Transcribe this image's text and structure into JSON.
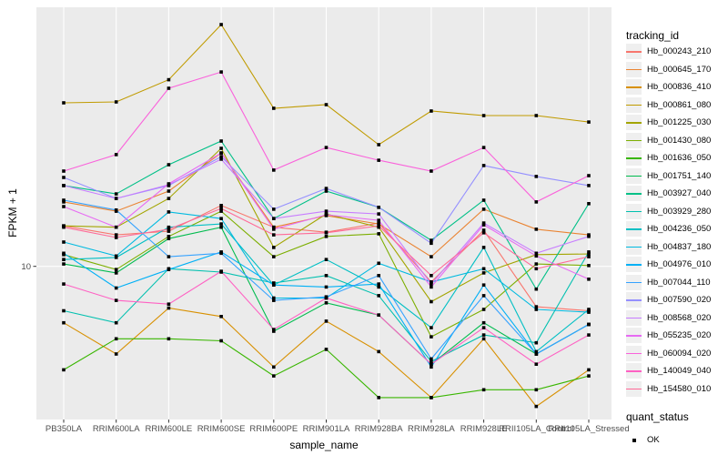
{
  "chart_data": {
    "type": "line",
    "title": "",
    "xlabel": "sample_name",
    "ylabel": "FPKM + 1",
    "y_scale": "log10",
    "ylim": [
      1.4,
      260
    ],
    "y_tick_labels": [
      "10"
    ],
    "y_tick_values": [
      10
    ],
    "grid": "vertical-per-category-plus-y10",
    "panel_color": "#ebebeb",
    "grid_color": "#ffffff",
    "axis_text_color": "#4d4d4d",
    "tick_color": "#333333",
    "point_shape": "filled-square",
    "point_color": "#000000",
    "legend_position": "right",
    "color_legend_title": "tracking_id",
    "shape_legend_title": "quant_status",
    "shape_legend_items": [
      {
        "label": "OK",
        "shape": "filled-square",
        "color": "#000000"
      }
    ],
    "categories": [
      "PB350LA",
      "RRIM600LA",
      "RRIM600LE",
      "RRIM600SE",
      "RRIM600PE",
      "RRIM901LA",
      "RRIM928BA",
      "RRIM928LA",
      "RRIM928LE",
      "RRII105LA_Control",
      "RRII105LA_Stressed"
    ],
    "series": [
      {
        "name": "Hb_000243_210",
        "color": "#F8766D",
        "values": [
          16.7,
          14.9,
          15.6,
          21.6,
          16.4,
          15.4,
          17.3,
          8.2,
          15.8,
          6.0,
          5.7
        ]
      },
      {
        "name": "Hb_000645_170",
        "color": "#EA8331",
        "values": [
          22.6,
          20.1,
          25.9,
          42.0,
          16.4,
          19.0,
          17.1,
          11.3,
          20.6,
          16.0,
          14.9
        ]
      },
      {
        "name": "Hb_000836_410",
        "color": "#D89000",
        "values": [
          4.9,
          3.3,
          5.9,
          5.3,
          2.8,
          5.0,
          3.4,
          1.9,
          4.0,
          1.7,
          2.7
        ]
      },
      {
        "name": "Hb_000861_080",
        "color": "#C09B00",
        "values": [
          79.2,
          80.1,
          106.0,
          213.0,
          73.9,
          77.4,
          46.6,
          71.4,
          67.4,
          67.4,
          62.1
        ]
      },
      {
        "name": "Hb_001225_030",
        "color": "#A3A500",
        "values": [
          16.7,
          16.4,
          23.6,
          44.5,
          12.7,
          19.4,
          16.4,
          6.4,
          9.2,
          11.6,
          11.7
        ]
      },
      {
        "name": "Hb_001430_080",
        "color": "#7CAE00",
        "values": [
          11.6,
          9.6,
          14.6,
          20.1,
          11.3,
          14.6,
          15.1,
          4.1,
          5.8,
          10.3,
          10.1
        ]
      },
      {
        "name": "Hb_001636_050",
        "color": "#39B600",
        "values": [
          2.7,
          4.0,
          4.0,
          3.9,
          2.5,
          3.5,
          1.9,
          1.9,
          2.1,
          2.1,
          2.5
        ]
      },
      {
        "name": "Hb_001751_140",
        "color": "#00BB4E",
        "values": [
          10.3,
          9.2,
          14.2,
          16.4,
          4.4,
          6.3,
          5.4,
          2.9,
          4.9,
          3.3,
          4.8
        ]
      },
      {
        "name": "Hb_003927_040",
        "color": "#00C087",
        "values": [
          27.8,
          25.0,
          36.2,
          48.8,
          18.3,
          25.9,
          21.1,
          13.9,
          23.1,
          7.5,
          22.1
        ]
      },
      {
        "name": "Hb_003929_280",
        "color": "#00C0AF",
        "values": [
          5.7,
          4.9,
          9.7,
          9.3,
          8.1,
          8.9,
          6.9,
          3.0,
          4.2,
          3.8,
          12.0
        ]
      },
      {
        "name": "Hb_004236_050",
        "color": "#00BFC4",
        "values": [
          10.9,
          11.2,
          16.4,
          17.1,
          7.9,
          10.9,
          7.7,
          4.6,
          12.7,
          3.4,
          5.8
        ]
      },
      {
        "name": "Hb_004837_180",
        "color": "#00BAE0",
        "values": [
          13.6,
          11.4,
          19.9,
          18.3,
          6.7,
          6.7,
          10.4,
          8.2,
          9.7,
          5.8,
          5.6
        ]
      },
      {
        "name": "Hb_004976_010",
        "color": "#00B0F6",
        "values": [
          11.8,
          7.6,
          9.6,
          12.0,
          7.9,
          7.7,
          8.0,
          2.8,
          7.9,
          3.3,
          4.8
        ]
      },
      {
        "name": "Hb_007044_110",
        "color": "#35A2FF",
        "values": [
          23.1,
          20.4,
          11.3,
          11.8,
          6.5,
          6.8,
          8.9,
          3.1,
          6.9,
          3.3,
          4.8
        ]
      },
      {
        "name": "Hb_007590_020",
        "color": "#9590FF",
        "values": [
          30.8,
          23.6,
          27.8,
          40.1,
          20.6,
          26.8,
          21.1,
          13.4,
          35.8,
          31.2,
          27.8
        ]
      },
      {
        "name": "Hb_008568_020",
        "color": "#C77CFF",
        "values": [
          27.8,
          23.6,
          28.1,
          38.8,
          18.3,
          20.1,
          19.4,
          8.0,
          17.3,
          11.8,
          14.6
        ]
      },
      {
        "name": "Hb_055235_020",
        "color": "#E76BF3",
        "values": [
          21.3,
          16.4,
          28.4,
          42.0,
          16.0,
          19.2,
          17.9,
          7.7,
          16.9,
          11.4,
          8.5
        ]
      },
      {
        "name": "Hb_060094_020",
        "color": "#FA62DB",
        "values": [
          33.4,
          41.1,
          95.2,
          117.0,
          33.8,
          45.0,
          38.3,
          33.4,
          45.0,
          22.6,
          31.5
        ]
      },
      {
        "name": "Hb_140049_040",
        "color": "#FF61C3",
        "values": [
          8.0,
          6.5,
          6.2,
          9.4,
          4.5,
          6.7,
          5.4,
          2.9,
          4.6,
          2.9,
          4.2
        ]
      },
      {
        "name": "Hb_154580_010",
        "color": "#FF6A98",
        "values": [
          16.4,
          14.4,
          16.0,
          20.8,
          14.9,
          15.3,
          16.7,
          8.9,
          15.3,
          9.7,
          11.3
        ]
      }
    ]
  }
}
